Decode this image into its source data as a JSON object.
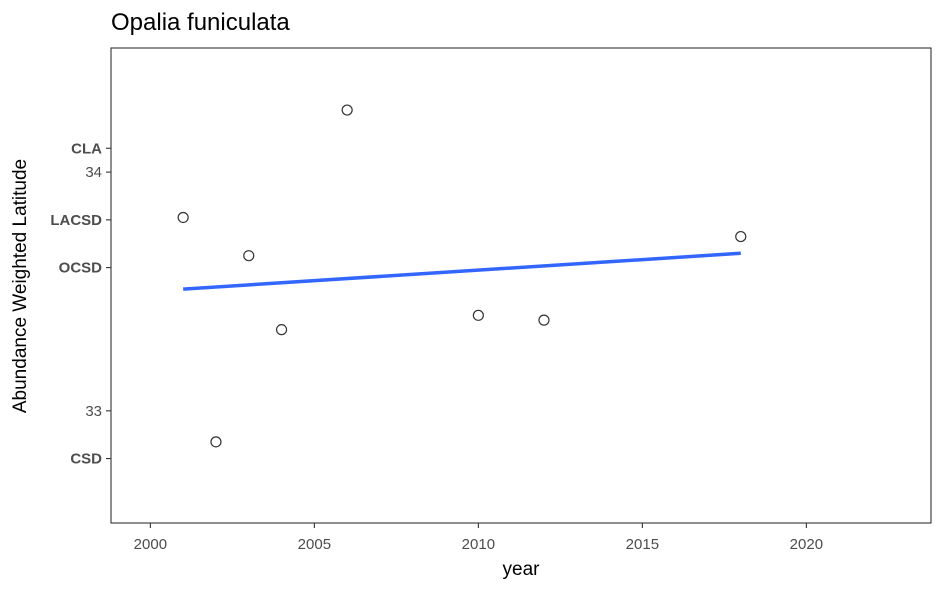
{
  "chart_data": {
    "type": "scatter",
    "title": "Opalia funiculata",
    "xlabel": "year",
    "ylabel": "Abundance Weighted Latitude",
    "xlim": [
      1998.8,
      2023.8
    ],
    "ylim": [
      32.53,
      34.52
    ],
    "x_ticks": [
      2000,
      2005,
      2010,
      2015,
      2020
    ],
    "y_ticks": [
      33,
      34
    ],
    "station_labels": [
      {
        "label": "CLA",
        "y": 34.1
      },
      {
        "label": "LACSD",
        "y": 33.8
      },
      {
        "label": "OCSD",
        "y": 33.6
      },
      {
        "label": "CSD",
        "y": 32.8
      }
    ],
    "points": [
      {
        "x": 2001,
        "y": 33.81
      },
      {
        "x": 2002,
        "y": 32.87
      },
      {
        "x": 2003,
        "y": 33.65
      },
      {
        "x": 2004,
        "y": 33.34
      },
      {
        "x": 2006,
        "y": 34.26
      },
      {
        "x": 2010,
        "y": 33.4
      },
      {
        "x": 2012,
        "y": 33.38
      },
      {
        "x": 2018,
        "y": 33.73
      }
    ],
    "trend_line": {
      "x": [
        2001,
        2018
      ],
      "y": [
        33.51,
        33.66
      ],
      "color": "#3366ff"
    },
    "grid": false,
    "legend": "none"
  }
}
